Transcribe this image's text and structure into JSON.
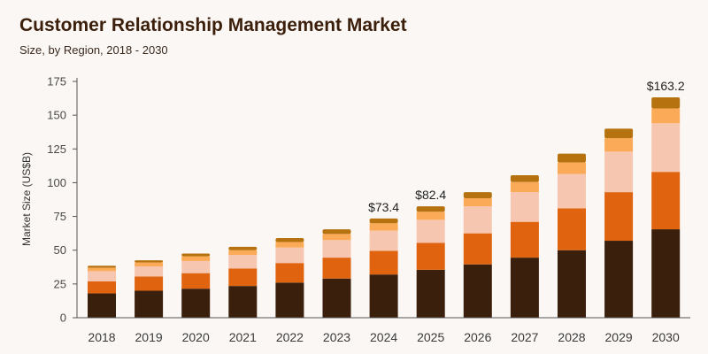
{
  "chart_data": {
    "type": "bar",
    "stacked": true,
    "title": "Customer Relationship Management Market",
    "subtitle": "Size, by Region, 2018 - 2030",
    "xlabel": "",
    "ylabel": "Market Size (US$B)",
    "ylim": [
      0,
      175
    ],
    "yticks": [
      0,
      25,
      50,
      75,
      100,
      125,
      150,
      175
    ],
    "grid": false,
    "legend": "none",
    "categories": [
      "2018",
      "2019",
      "2020",
      "2021",
      "2022",
      "2023",
      "2024",
      "2025",
      "2026",
      "2027",
      "2028",
      "2029",
      "2030"
    ],
    "series": [
      {
        "color": "#3a1f0c",
        "values": [
          18,
          20,
          21.5,
          23.5,
          26,
          29,
          32,
          35.5,
          39.5,
          44.5,
          50,
          57,
          65.5
        ]
      },
      {
        "color": "#e06410",
        "values": [
          9,
          10.5,
          11.5,
          13,
          14.5,
          15.5,
          17.5,
          20,
          23,
          26.5,
          31,
          36,
          42.5
        ]
      },
      {
        "color": "#f7c6b0",
        "values": [
          7.5,
          7.5,
          9,
          10,
          11.5,
          13,
          15,
          17,
          20,
          22,
          25.5,
          30,
          36
        ]
      },
      {
        "color": "#fbab58",
        "values": [
          2.5,
          3,
          3.5,
          3.5,
          4,
          4.5,
          5.5,
          6,
          6,
          7.5,
          8.5,
          10,
          11
        ]
      },
      {
        "color": "#b5720f",
        "values": [
          1.5,
          1.5,
          2,
          2.5,
          3,
          3.5,
          3.5,
          4,
          4.5,
          5,
          6.5,
          7,
          8.2
        ]
      }
    ],
    "annotations": [
      {
        "category": "2024",
        "text": "$73.4",
        "value": 73.4
      },
      {
        "category": "2025",
        "text": "$82.4",
        "value": 82.4
      },
      {
        "category": "2030",
        "text": "$163.2",
        "value": 163.2
      }
    ]
  }
}
